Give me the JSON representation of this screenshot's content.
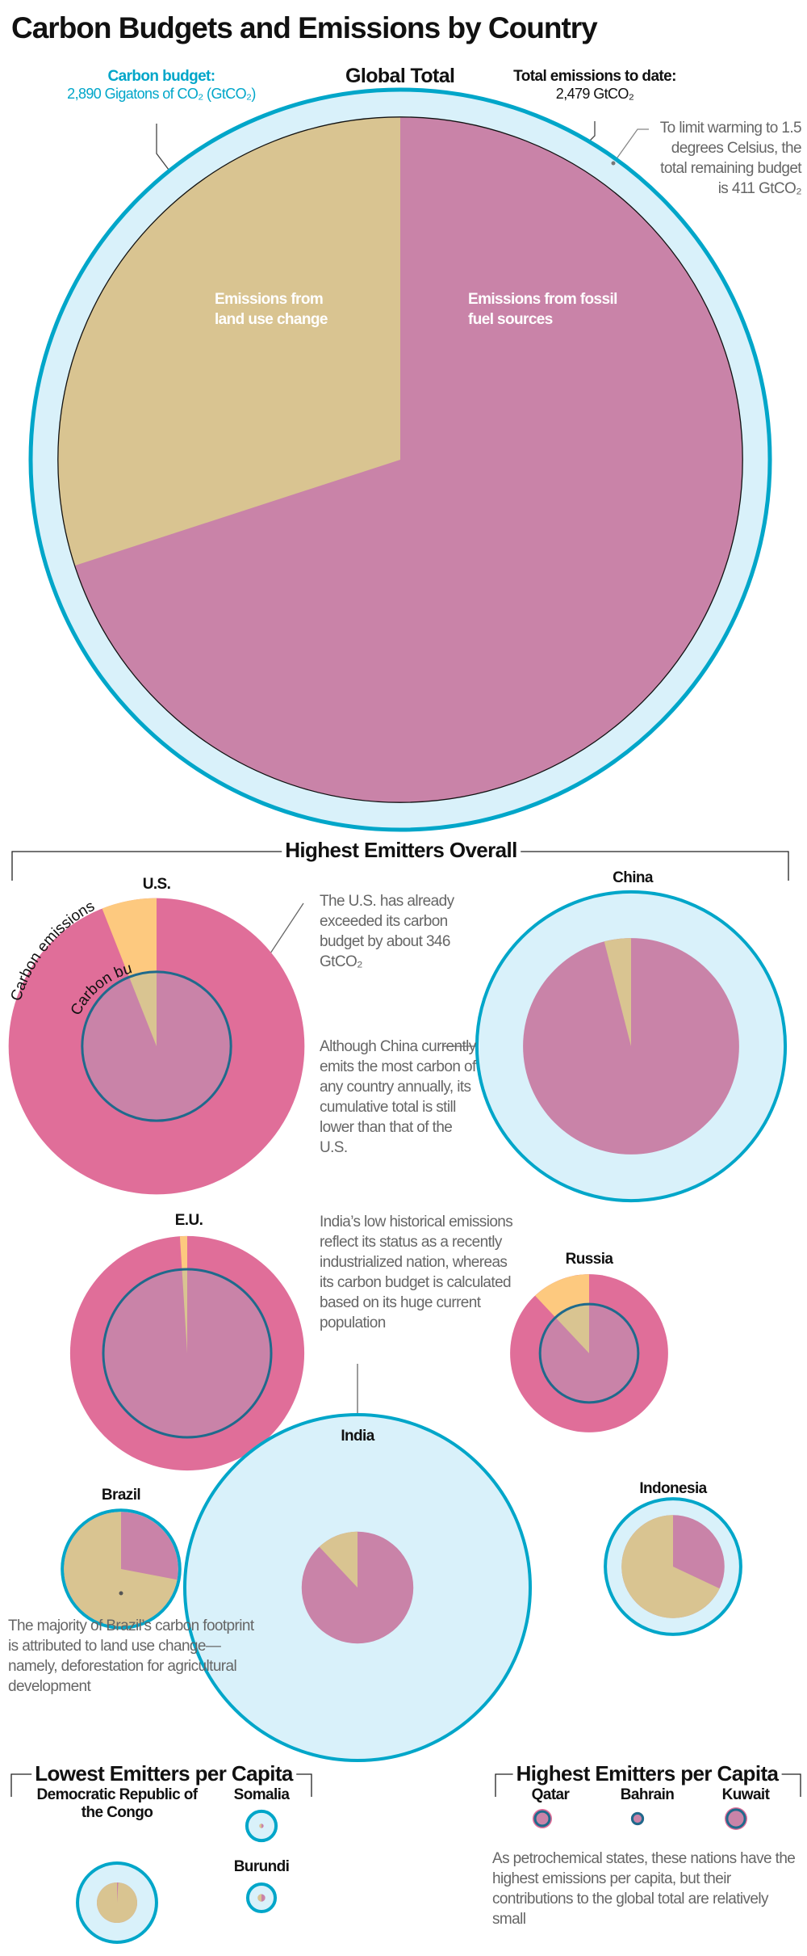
{
  "title": "Carbon Budgets and Emissions by Country",
  "global": {
    "heading": "Global Total",
    "budget_label": "Carbon budget:",
    "budget_value": "2,890 Gigatons of CO₂ (GtCO₂)",
    "emissions_label": "Total emissions to date:",
    "emissions_value": "2,479 GtCO₂",
    "remaining_note": "To limit warming to 1.5 degrees Celsius, the total remaining budget is 411 GtCO₂",
    "land_label": "Emissions from land use change",
    "fossil_label": "Emissions from fossil fuel sources"
  },
  "sections": {
    "overall": "Highest Emitters Overall",
    "lowest": "Lowest Emitters per Capita",
    "highest": "Highest Emitters per Capita"
  },
  "legend_curved": {
    "emissions": "Carbon emissions",
    "budget": "Carbon budget"
  },
  "notes": {
    "us": "The U.S. has already exceeded its carbon budget by about 346 GtCO₂",
    "china": "Although China currently emits the most carbon of any country annually, its cumulative total is still lower than that of the U.S.",
    "india": "India’s low historical emissions reflect its status as a recently industrialized nation, whereas its carbon budget is calculated based on its huge current population",
    "brazil": "The majority of Brazil’s carbon footprint is attributed to land use change—namely, deforestation for agricultural development",
    "petro": "As petrochemical states, these nations have the highest emissions per capita, but their contributions to the global total are relatively small"
  },
  "colors": {
    "budget_stroke": "#00a6c9",
    "budget_fill": "#d9f1fa",
    "fossil_within_budget": "#c983a8",
    "land_within_budget": "#d9c491",
    "fossil_over_budget": "#e06e99",
    "land_over_budget": "#fdc97f",
    "budget_line_over": "#1f6a8c"
  },
  "chart_data": {
    "type": "pie",
    "units": "GtCO₂",
    "note": "Nested proportional circles: budget circle vs. emissions pie split into fossil fuel and land use change",
    "items": [
      {
        "name": "Global Total",
        "budget": 2890,
        "emissions": 2479,
        "land_use_share": 0.3
      },
      {
        "name": "U.S.",
        "budget": 117,
        "emissions": 463,
        "land_use_share": 0.06
      },
      {
        "name": "China",
        "budget": 503,
        "emissions": 247,
        "land_use_share": 0.04
      },
      {
        "name": "E.U.",
        "budget": 149,
        "emissions": 290,
        "land_use_share": 0.01
      },
      {
        "name": "Russia",
        "budget": 51,
        "emissions": 132,
        "land_use_share": 0.12
      },
      {
        "name": "India",
        "budget": 631,
        "emissions": 66,
        "land_use_share": 0.12
      },
      {
        "name": "Brazil",
        "budget": 73,
        "emissions": 69,
        "land_use_share": 0.72
      },
      {
        "name": "Indonesia",
        "budget": 97,
        "emissions": 56,
        "land_use_share": 0.68
      },
      {
        "name": "Democratic Republic of the Congo",
        "budget": 33,
        "emissions": 8.6,
        "land_use_share": 0.99
      },
      {
        "name": "Somalia",
        "budget": 4.5,
        "emissions": 0.1,
        "land_use_share": 0.5
      },
      {
        "name": "Burundi",
        "budget": 4,
        "emissions": 0.3,
        "land_use_share": 0.5
      },
      {
        "name": "Qatar",
        "budget": 1.1,
        "emissions": 2.0,
        "land_use_share": 0
      },
      {
        "name": "Bahrain",
        "budget": 0.6,
        "emissions": 0.9,
        "land_use_share": 0
      },
      {
        "name": "Kuwait",
        "budget": 1.7,
        "emissions": 2.7,
        "land_use_share": 0
      }
    ]
  }
}
